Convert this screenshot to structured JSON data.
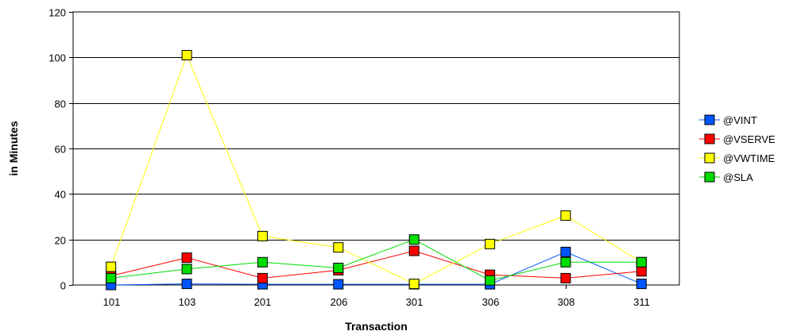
{
  "chart_data": {
    "type": "line",
    "title": "",
    "xlabel": "Transaction",
    "ylabel": "in Minutes",
    "categories": [
      "101",
      "103",
      "201",
      "206",
      "301",
      "306",
      "308",
      "311"
    ],
    "ylim": [
      0,
      120
    ],
    "yticks": [
      0,
      20,
      40,
      60,
      80,
      100,
      120
    ],
    "grid": "horizontal",
    "legend_position": "right",
    "series": [
      {
        "name": "@VINT",
        "color": "#0055ff",
        "values": [
          0,
          0.5,
          0.3,
          0.3,
          0.3,
          0.3,
          14.5,
          0.5
        ]
      },
      {
        "name": "@VSERVE",
        "color": "#ff0000",
        "values": [
          4,
          12,
          3,
          6.5,
          15,
          4.5,
          3,
          6
        ]
      },
      {
        "name": "@VWTIME",
        "color": "#ffff00",
        "values": [
          8,
          101,
          21.5,
          16.5,
          0.5,
          18,
          30.5,
          10
        ]
      },
      {
        "name": "@SLA",
        "color": "#00dd00",
        "values": [
          3,
          7,
          10,
          7.5,
          20,
          2,
          10,
          10
        ]
      }
    ]
  }
}
